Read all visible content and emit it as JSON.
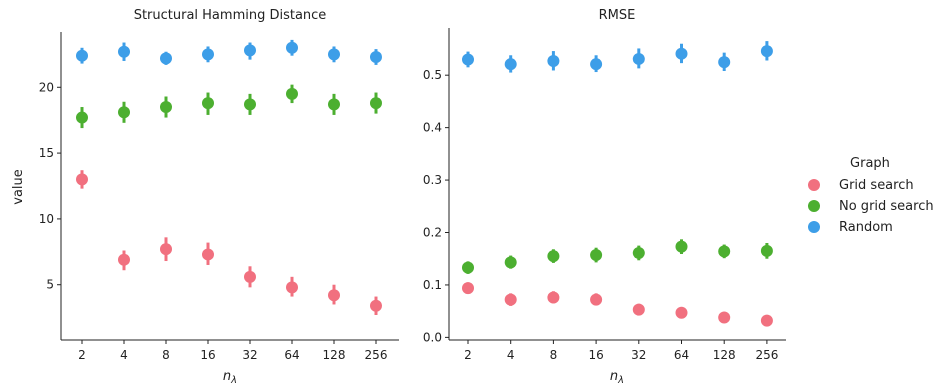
{
  "legend": {
    "title": "Graph",
    "entries": [
      {
        "label": "Grid search",
        "color": "#f1707f"
      },
      {
        "label": "No grid search",
        "color": "#4caf30"
      },
      {
        "label": "Random",
        "color": "#3d9ee8"
      }
    ]
  },
  "chart_data": [
    {
      "type": "scatter",
      "title": "Structural Hamming Distance",
      "xlabel": "n_λ",
      "ylabel": "value",
      "categories": [
        "2",
        "4",
        "8",
        "16",
        "32",
        "64",
        "128",
        "256"
      ],
      "ylim": [
        0.8,
        24.2
      ],
      "yticks": [
        5,
        10,
        15,
        20
      ],
      "series": [
        {
          "name": "Grid search",
          "color": "#f1707f",
          "values": [
            13.0,
            6.9,
            7.7,
            7.3,
            5.6,
            4.8,
            4.2,
            3.4
          ],
          "err_low": [
            12.3,
            6.1,
            6.8,
            6.5,
            4.8,
            4.1,
            3.5,
            2.7
          ],
          "err_high": [
            13.7,
            7.6,
            8.6,
            8.2,
            6.4,
            5.6,
            5.0,
            4.1
          ]
        },
        {
          "name": "No grid search",
          "color": "#4caf30",
          "values": [
            17.7,
            18.1,
            18.5,
            18.8,
            18.7,
            19.5,
            18.7,
            18.8
          ],
          "err_low": [
            16.9,
            17.3,
            17.7,
            17.9,
            17.9,
            18.8,
            17.9,
            18.0
          ],
          "err_high": [
            18.5,
            18.9,
            19.3,
            19.6,
            19.5,
            20.2,
            19.5,
            19.6
          ]
        },
        {
          "name": "Random",
          "color": "#3d9ee8",
          "values": [
            22.4,
            22.7,
            22.2,
            22.5,
            22.8,
            23.0,
            22.5,
            22.3
          ],
          "err_low": [
            21.8,
            22.0,
            21.7,
            21.9,
            22.1,
            22.4,
            21.9,
            21.7
          ],
          "err_high": [
            23.0,
            23.4,
            22.7,
            23.1,
            23.4,
            23.6,
            23.1,
            22.9
          ]
        }
      ]
    },
    {
      "type": "scatter",
      "title": "RMSE",
      "xlabel": "n_λ",
      "ylabel": "",
      "categories": [
        "2",
        "4",
        "8",
        "16",
        "32",
        "64",
        "128",
        "256"
      ],
      "ylim": [
        -0.005,
        0.59
      ],
      "yticks": [
        0.0,
        0.1,
        0.2,
        0.3,
        0.4,
        0.5
      ],
      "series": [
        {
          "name": "Grid search",
          "color": "#f1707f",
          "values": [
            0.094,
            0.072,
            0.076,
            0.072,
            0.053,
            0.047,
            0.038,
            0.032
          ],
          "err_low": [
            0.083,
            0.06,
            0.065,
            0.061,
            0.043,
            0.039,
            0.032,
            0.026
          ],
          "err_high": [
            0.105,
            0.084,
            0.088,
            0.084,
            0.064,
            0.056,
            0.045,
            0.038
          ]
        },
        {
          "name": "No grid search",
          "color": "#4caf30",
          "values": [
            0.133,
            0.143,
            0.155,
            0.157,
            0.161,
            0.173,
            0.164,
            0.165
          ],
          "err_low": [
            0.121,
            0.131,
            0.142,
            0.143,
            0.147,
            0.159,
            0.151,
            0.15
          ],
          "err_high": [
            0.145,
            0.156,
            0.168,
            0.171,
            0.175,
            0.187,
            0.177,
            0.18
          ]
        },
        {
          "name": "Random",
          "color": "#3d9ee8",
          "values": [
            0.53,
            0.521,
            0.527,
            0.521,
            0.531,
            0.541,
            0.525,
            0.546
          ],
          "err_low": [
            0.515,
            0.505,
            0.509,
            0.506,
            0.513,
            0.523,
            0.508,
            0.528
          ],
          "err_high": [
            0.545,
            0.538,
            0.546,
            0.538,
            0.551,
            0.56,
            0.543,
            0.565
          ]
        }
      ]
    }
  ]
}
